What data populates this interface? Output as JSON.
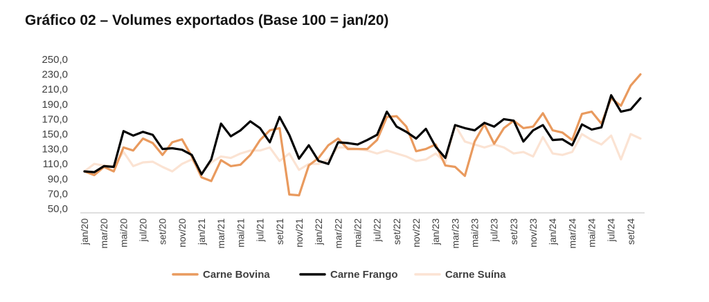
{
  "chart_data": {
    "type": "line",
    "title": "Gráfico 02 – Volumes exportados (Base 100 = jan/20)",
    "xlabel": "",
    "ylabel": "",
    "ylim": [
      50,
      250
    ],
    "y_ticks": [
      "250,0",
      "230,0",
      "210,0",
      "190,0",
      "170,0",
      "150,0",
      "130,0",
      "110,0",
      "90,0",
      "70,0",
      "50,0"
    ],
    "y_tick_values": [
      250,
      230,
      210,
      190,
      170,
      150,
      130,
      110,
      90,
      70,
      50
    ],
    "x_tick_labels": [
      "jan/20",
      "mar/20",
      "mai/20",
      "jul/20",
      "set/20",
      "nov/20",
      "jan/21",
      "mar/21",
      "mai/21",
      "jul/21",
      "set/21",
      "nov/21",
      "jan/22",
      "mar/22",
      "mai/22",
      "jul/22",
      "set/22",
      "nov/22",
      "jan/23",
      "mar/23",
      "mai/23",
      "jul/23",
      "set/23",
      "nov/23",
      "jan/24",
      "mar/24",
      "mai/24",
      "jul/24",
      "set/24"
    ],
    "categories": [
      "jan/20",
      "fev/20",
      "mar/20",
      "abr/20",
      "mai/20",
      "jun/20",
      "jul/20",
      "ago/20",
      "set/20",
      "out/20",
      "nov/20",
      "dez/20",
      "jan/21",
      "fev/21",
      "mar/21",
      "abr/21",
      "mai/21",
      "jun/21",
      "jul/21",
      "ago/21",
      "set/21",
      "out/21",
      "nov/21",
      "dez/21",
      "jan/22",
      "fev/22",
      "mar/22",
      "abr/22",
      "mai/22",
      "jun/22",
      "jul/22",
      "ago/22",
      "set/22",
      "out/22",
      "nov/22",
      "dez/22",
      "jan/23",
      "fev/23",
      "mar/23",
      "abr/23",
      "mai/23",
      "jun/23",
      "jul/23",
      "ago/23",
      "set/23",
      "out/23",
      "nov/23",
      "dez/23",
      "jan/24",
      "fev/24",
      "mar/24",
      "abr/24",
      "mai/24",
      "jun/24",
      "jul/24",
      "ago/24",
      "set/24",
      "out/24"
    ],
    "grid": false,
    "legend_position": "bottom",
    "series": [
      {
        "name": "Carne Bovina",
        "color": "#E99A5E",
        "values": [
          100,
          95,
          106,
          100,
          132,
          128,
          144,
          138,
          122,
          139,
          143,
          120,
          92,
          87,
          115,
          107,
          109,
          122,
          142,
          155,
          158,
          69,
          68,
          108,
          118,
          135,
          144,
          130,
          130,
          130,
          142,
          173,
          174,
          160,
          127,
          130,
          136,
          108,
          106,
          94,
          140,
          163,
          137,
          158,
          168,
          158,
          160,
          178,
          155,
          152,
          142,
          177,
          180,
          164,
          198,
          188,
          215,
          230
        ]
      },
      {
        "name": "Carne Frango",
        "color": "#000000",
        "values": [
          100,
          99,
          107,
          106,
          154,
          148,
          153,
          149,
          130,
          131,
          129,
          122,
          96,
          116,
          164,
          147,
          155,
          167,
          158,
          139,
          173,
          149,
          117,
          135,
          114,
          110,
          139,
          138,
          136,
          142,
          149,
          180,
          160,
          153,
          144,
          157,
          133,
          118,
          162,
          158,
          155,
          165,
          160,
          170,
          168,
          140,
          155,
          162,
          142,
          143,
          135,
          163,
          156,
          159,
          202,
          180,
          183,
          198
        ]
      },
      {
        "name": "Carne Suína",
        "color": "#FBE3D3",
        "values": [
          100,
          110,
          108,
          107,
          126,
          107,
          112,
          113,
          106,
          100,
          110,
          116,
          98,
          112,
          120,
          118,
          124,
          128,
          128,
          132,
          114,
          124,
          102,
          110,
          110,
          116,
          132,
          132,
          130,
          128,
          124,
          128,
          124,
          120,
          114,
          116,
          124,
          112,
          162,
          140,
          136,
          132,
          136,
          132,
          124,
          126,
          120,
          146,
          124,
          122,
          126,
          150,
          142,
          136,
          148,
          116,
          150,
          144
        ]
      }
    ]
  }
}
